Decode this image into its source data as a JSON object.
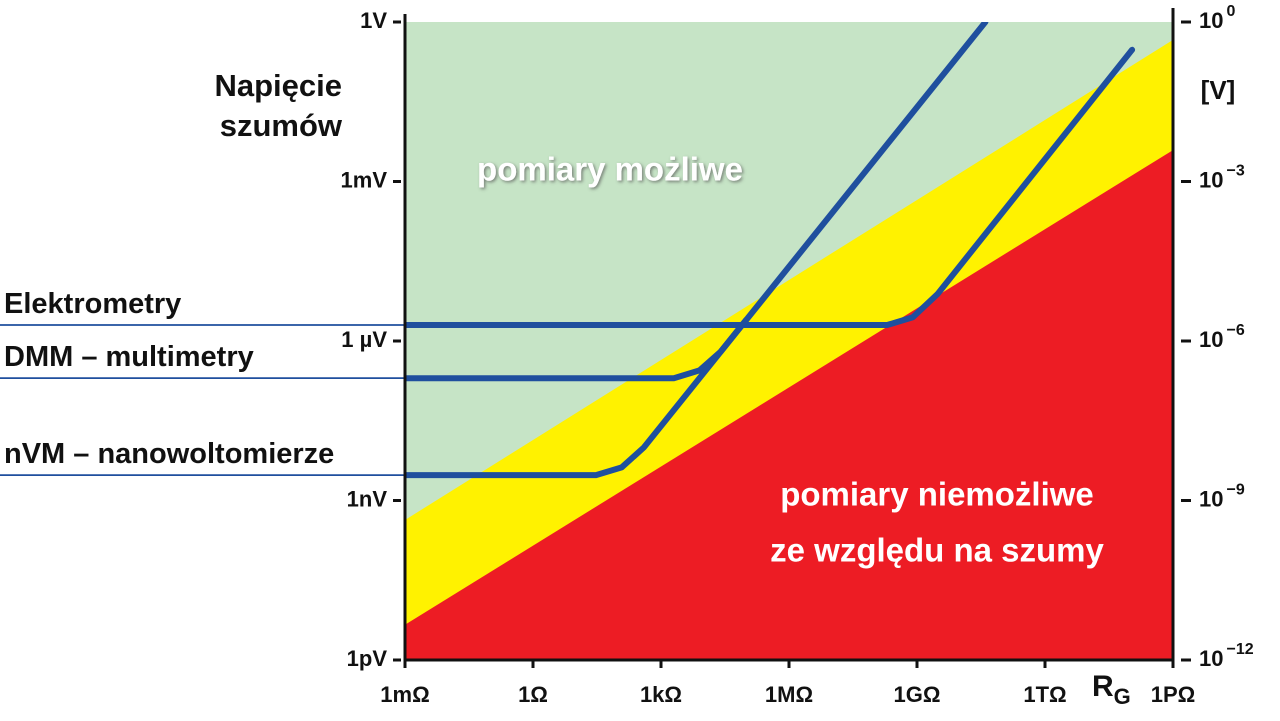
{
  "chart_data": {
    "type": "line",
    "ylabel": [
      "Napięcie",
      "szumów"
    ],
    "y2label": "[V]",
    "xlabel": {
      "main": "R",
      "sub": "G"
    },
    "xscale": "log",
    "yscale": "log",
    "xlim": [
      0.001,
      1000000000000000.0
    ],
    "ylim": [
      1e-12,
      1
    ],
    "y2lim": [
      1e-12,
      1
    ],
    "xticks": [
      {
        "value": 0.001,
        "label": "1mΩ"
      },
      {
        "value": 1,
        "label": "1Ω"
      },
      {
        "value": 1000,
        "label": "1kΩ"
      },
      {
        "value": 1000000,
        "label": "1MΩ"
      },
      {
        "value": 1000000000,
        "label": "1GΩ"
      },
      {
        "value": 1000000000000,
        "label": "1TΩ"
      },
      {
        "value": 1000000000000000,
        "label": "1PΩ"
      }
    ],
    "yticks": [
      {
        "value": 1,
        "label": "1V"
      },
      {
        "value": 0.001,
        "label": "1mV"
      },
      {
        "value": 1e-06,
        "label": "1 µV"
      },
      {
        "value": 1e-09,
        "label": "1nV"
      },
      {
        "value": 1e-12,
        "label": "1pV"
      }
    ],
    "y2ticks": [
      {
        "value": 1,
        "label": "10",
        "exponent": "0"
      },
      {
        "value": 0.001,
        "label": "10",
        "exponent": "−3"
      },
      {
        "value": 1e-06,
        "label": "10",
        "exponent": "−6"
      },
      {
        "value": 1e-09,
        "label": "10",
        "exponent": "−9"
      },
      {
        "value": 1e-12,
        "label": "10",
        "exponent": "−12"
      }
    ],
    "plot_background": "#c6e4c6",
    "boundaries": [
      {
        "color": "#fff200",
        "x": [
          0.001,
          1000000000000000.0
        ],
        "y": [
          4.3e-10,
          0.46
        ]
      },
      {
        "color": "#ed1c24",
        "x": [
          0.001,
          1000000000000000.0
        ],
        "y": [
          4.6e-12,
          0.0039
        ]
      }
    ],
    "annotations": [
      {
        "text": "pomiary możliwe"
      },
      {
        "text": [
          "pomiary niemożliwe",
          "ze względu na szumy"
        ]
      }
    ],
    "series": [
      {
        "name": "Elektrometry",
        "color": "#1f4f9e",
        "x": [
          0.001,
          200000000,
          800000000,
          3000000000,
          110000000000000
        ],
        "y": [
          2e-06,
          2e-06,
          2.8e-06,
          7.6e-06,
          0.3
        ]
      },
      {
        "name": "DMM – multimetry",
        "color": "#1f4f9e",
        "x": [
          0.001,
          2000,
          8000,
          25000,
          100000
        ],
        "y": [
          2e-07,
          2e-07,
          2.8e-07,
          6.3e-07,
          2.5e-06
        ]
      },
      {
        "name": "nVM – nanowoltomierze",
        "color": "#1f4f9e",
        "x": [
          0.001,
          30,
          120,
          400,
          40000000000
        ],
        "y": [
          3e-09,
          3e-09,
          4.2e-09,
          1e-08,
          1
        ]
      }
    ]
  }
}
